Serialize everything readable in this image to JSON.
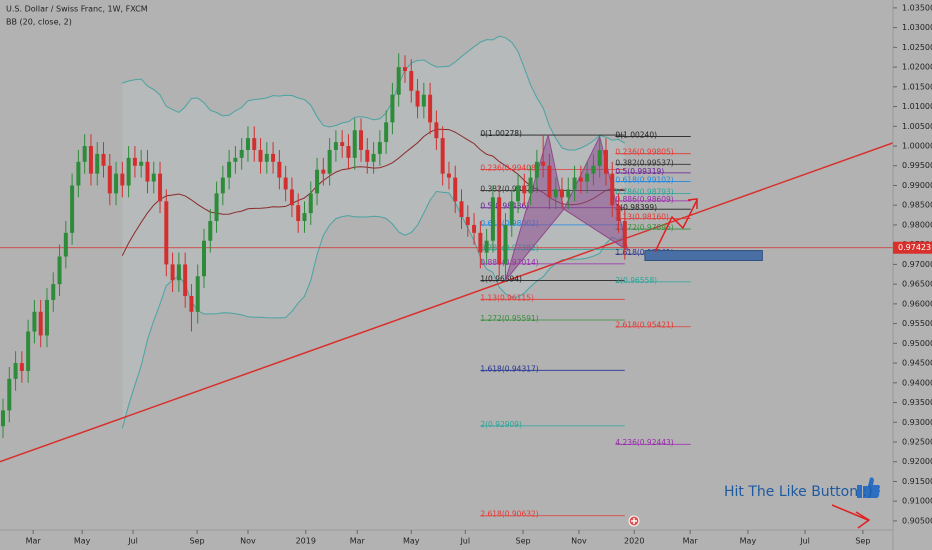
{
  "chart_data": {
    "type": "candlestick",
    "title": "U.S. Dollar / Swiss Franc, 1W, FXCM",
    "indicator": "BB (20, close, 2)",
    "annotation": "Hit The Like Button :)",
    "up_color": "#2e8b3a",
    "down_color": "#d32f2f",
    "x": [
      0,
      1,
      2,
      3,
      4,
      5,
      6,
      7,
      8,
      9,
      10,
      11,
      12,
      13,
      14,
      15,
      16,
      17,
      18,
      19,
      20,
      21,
      22,
      23,
      24,
      25,
      26,
      27,
      28,
      29,
      30,
      31,
      32,
      33,
      34,
      35,
      36,
      37,
      38,
      39,
      40,
      41,
      42,
      43,
      44,
      45,
      46,
      47,
      48,
      49,
      50,
      51,
      52,
      53,
      54,
      55,
      56,
      57,
      58,
      59,
      60,
      61,
      62,
      63,
      64,
      65,
      66,
      67,
      68,
      69,
      70,
      71,
      72,
      73,
      74,
      75,
      76,
      77,
      78,
      79,
      80,
      81,
      82,
      83,
      84,
      85,
      86,
      87,
      88,
      89,
      90,
      91,
      92,
      93,
      94,
      95,
      96,
      97,
      98,
      99
    ],
    "open": [
      0.929,
      0.933,
      0.941,
      0.945,
      0.943,
      0.953,
      0.958,
      0.952,
      0.961,
      0.965,
      0.972,
      0.978,
      0.99,
      0.996,
      1.0,
      0.993,
      0.998,
      0.995,
      0.988,
      0.993,
      0.99,
      0.997,
      0.995,
      0.996,
      0.991,
      0.993,
      0.986,
      0.97,
      0.966,
      0.97,
      0.962,
      0.958,
      0.967,
      0.976,
      0.981,
      0.988,
      0.992,
      0.996,
      0.997,
      0.999,
      1.002,
      0.999,
      0.996,
      0.998,
      0.996,
      0.992,
      0.989,
      0.985,
      0.981,
      0.983,
      0.988,
      0.994,
      0.993,
      0.999,
      1.001,
      1.0,
      0.997,
      1.004,
      0.999,
      0.996,
      0.998,
      1.001,
      1.006,
      1.013,
      1.02,
      1.019,
      1.014,
      1.01,
      1.013,
      1.006,
      1.002,
      0.993,
      0.992,
      0.986,
      0.982,
      0.98,
      0.978,
      0.973,
      0.976,
      0.987,
      0.97,
      0.98,
      0.986,
      0.99,
      0.988,
      0.992,
      0.996,
      0.995,
      0.987,
      0.989,
      0.987,
      0.989,
      0.992,
      0.991,
      0.993,
      0.995,
      0.999,
      0.993,
      0.985,
      0.981
    ],
    "high": [
      0.936,
      0.944,
      0.948,
      0.948,
      0.956,
      0.961,
      0.961,
      0.964,
      0.968,
      0.975,
      0.981,
      0.993,
      0.999,
      1.003,
      1.003,
      1.001,
      1.001,
      0.998,
      0.996,
      0.996,
      1.0,
      1.0,
      0.999,
      0.999,
      0.996,
      0.996,
      0.989,
      0.973,
      0.973,
      0.973,
      0.965,
      0.97,
      0.979,
      0.984,
      0.991,
      0.995,
      0.999,
      1.0,
      1.002,
      1.005,
      1.005,
      1.002,
      1.001,
      1.001,
      0.999,
      0.995,
      0.992,
      0.988,
      0.986,
      0.991,
      0.997,
      0.997,
      1.002,
      1.004,
      1.004,
      1.003,
      1.007,
      1.007,
      1.002,
      1.001,
      1.004,
      1.009,
      1.016,
      1.0235,
      1.023,
      1.022,
      1.017,
      1.016,
      1.016,
      1.009,
      1.005,
      0.996,
      0.995,
      0.989,
      0.985,
      0.983,
      0.981,
      0.979,
      0.99,
      0.99,
      0.983,
      0.989,
      0.993,
      0.993,
      0.995,
      0.999,
      1.0028,
      0.998,
      0.992,
      0.992,
      0.992,
      0.995,
      0.995,
      0.996,
      0.998,
      1.0024,
      1.002,
      0.996,
      0.988,
      0.984
    ],
    "low": [
      0.926,
      0.93,
      0.938,
      0.94,
      0.94,
      0.95,
      0.949,
      0.949,
      0.958,
      0.962,
      0.969,
      0.975,
      0.987,
      0.993,
      0.99,
      0.99,
      0.992,
      0.985,
      0.985,
      0.987,
      0.987,
      0.992,
      0.992,
      0.988,
      0.988,
      0.983,
      0.967,
      0.963,
      0.963,
      0.959,
      0.953,
      0.955,
      0.964,
      0.973,
      0.978,
      0.985,
      0.989,
      0.993,
      0.994,
      0.996,
      0.996,
      0.993,
      0.993,
      0.993,
      0.989,
      0.986,
      0.982,
      0.978,
      0.978,
      0.98,
      0.985,
      0.99,
      0.99,
      0.996,
      0.997,
      0.994,
      0.994,
      0.996,
      0.993,
      0.993,
      0.995,
      0.998,
      1.003,
      1.01,
      1.016,
      1.011,
      1.007,
      1.007,
      1.003,
      0.999,
      0.99,
      0.989,
      0.983,
      0.979,
      0.977,
      0.975,
      0.969,
      0.97,
      0.973,
      0.967,
      0.9659,
      0.977,
      0.983,
      0.985,
      0.985,
      0.989,
      0.992,
      0.984,
      0.984,
      0.984,
      0.984,
      0.986,
      0.988,
      0.988,
      0.99,
      0.992,
      0.99,
      0.982,
      0.978,
      0.9712
    ],
    "close": [
      0.933,
      0.941,
      0.945,
      0.943,
      0.953,
      0.958,
      0.952,
      0.961,
      0.965,
      0.972,
      0.978,
      0.99,
      0.996,
      1.0,
      0.993,
      0.998,
      0.995,
      0.988,
      0.993,
      0.99,
      0.997,
      0.995,
      0.996,
      0.991,
      0.993,
      0.986,
      0.97,
      0.966,
      0.97,
      0.962,
      0.958,
      0.967,
      0.976,
      0.981,
      0.988,
      0.992,
      0.996,
      0.997,
      0.999,
      1.002,
      0.999,
      0.996,
      0.998,
      0.996,
      0.992,
      0.989,
      0.985,
      0.981,
      0.983,
      0.988,
      0.994,
      0.993,
      0.999,
      1.001,
      1.0,
      0.997,
      1.004,
      0.999,
      0.996,
      0.998,
      1.001,
      1.006,
      1.013,
      1.02,
      1.019,
      1.014,
      1.01,
      1.013,
      1.006,
      1.002,
      0.993,
      0.992,
      0.986,
      0.982,
      0.98,
      0.978,
      0.973,
      0.976,
      0.987,
      0.97,
      0.98,
      0.986,
      0.99,
      0.988,
      0.992,
      0.996,
      0.995,
      0.987,
      0.989,
      0.987,
      0.989,
      0.992,
      0.991,
      0.993,
      0.995,
      0.999,
      0.993,
      0.985,
      0.981,
      0.9742
    ],
    "xlim": [
      -0.48,
      141.7
    ],
    "xticks": [
      {
        "value": 4.8,
        "label": "Mar"
      },
      {
        "value": 12.6,
        "label": "May"
      },
      {
        "value": 20.7,
        "label": "Jul"
      },
      {
        "value": 30.9,
        "label": "Sep"
      },
      {
        "value": 39.0,
        "label": "Nov"
      },
      {
        "value": 48.2,
        "label": "2019"
      },
      {
        "value": 56.4,
        "label": "Mar"
      },
      {
        "value": 65.0,
        "label": "May"
      },
      {
        "value": 73.6,
        "label": "Jul"
      },
      {
        "value": 82.8,
        "label": "Sep"
      },
      {
        "value": 91.7,
        "label": "Nov"
      },
      {
        "value": 100.5,
        "label": "2020"
      },
      {
        "value": 109.4,
        "label": "Mar"
      },
      {
        "value": 118.6,
        "label": "May"
      },
      {
        "value": 127.7,
        "label": "Jul"
      },
      {
        "value": 136.9,
        "label": "Sep"
      }
    ],
    "ylim": [
      0.9027,
      1.037
    ],
    "yticks": [
      {
        "value": 1.035,
        "label": "1.03500"
      },
      {
        "value": 1.03,
        "label": "1.03000"
      },
      {
        "value": 1.025,
        "label": "1.02500"
      },
      {
        "value": 1.02,
        "label": "1.02000"
      },
      {
        "value": 1.015,
        "label": "1.01500"
      },
      {
        "value": 1.01,
        "label": "1.01000"
      },
      {
        "value": 1.005,
        "label": "1.00500"
      },
      {
        "value": 1.0,
        "label": "1.00000"
      },
      {
        "value": 0.995,
        "label": "0.99500"
      },
      {
        "value": 0.99,
        "label": "0.99000"
      },
      {
        "value": 0.985,
        "label": "0.98500"
      },
      {
        "value": 0.98,
        "label": "0.98000"
      },
      {
        "value": 0.975,
        "label": "0.97500"
      },
      {
        "value": 0.97,
        "label": "0.97000"
      },
      {
        "value": 0.965,
        "label": "0.96500"
      },
      {
        "value": 0.96,
        "label": "0.96000"
      },
      {
        "value": 0.955,
        "label": "0.95500"
      },
      {
        "value": 0.95,
        "label": "0.95000"
      },
      {
        "value": 0.945,
        "label": "0.94500"
      },
      {
        "value": 0.94,
        "label": "0.94000"
      },
      {
        "value": 0.935,
        "label": "0.93500"
      },
      {
        "value": 0.93,
        "label": "0.93000"
      },
      {
        "value": 0.925,
        "label": "0.92500"
      },
      {
        "value": 0.92,
        "label": "0.92000"
      },
      {
        "value": 0.915,
        "label": "0.91500"
      },
      {
        "value": 0.91,
        "label": "0.91000"
      },
      {
        "value": 0.905,
        "label": "0.90500"
      }
    ],
    "last_price": {
      "value": 0.97423,
      "label": "0.97423"
    },
    "trendline": {
      "x": [
        -0.48,
        141.7
      ],
      "y": [
        0.92,
        1.0008
      ],
      "color": "#d9302c"
    },
    "harmonic_pattern": {
      "x": [
        80,
        86.8,
        89.3,
        95,
        99.5
      ],
      "y": [
        0.96594,
        1.00278,
        0.98399,
        1.0024,
        0.9735
      ],
      "color": "#8e4a8e"
    },
    "target_zone": {
      "x": [
        102.2,
        120.9
      ],
      "y": [
        0.9735,
        0.971
      ],
      "color": "#4a6fa5"
    },
    "fib_groups": [
      {
        "levels": [
          {
            "label": "0(1.00278)",
            "value": 1.00278,
            "color": "#222222"
          },
          {
            "label": "0.236(0.99408)",
            "value": 0.99408,
            "color": "#e53935"
          },
          {
            "label": "0.382(0.98871)",
            "value": 0.98871,
            "color": "#333333"
          },
          {
            "label": "0.5(0.98436)",
            "value": 0.98436,
            "color": "#6a1b9a"
          },
          {
            "label": "0.618(0.98002)",
            "value": 0.98002,
            "color": "#1e88e5"
          },
          {
            "label": "0.786(0.97382)",
            "value": 0.97382,
            "color": "#26a69a"
          },
          {
            "label": "0.886(0.97014)",
            "value": 0.97014,
            "color": "#9c27b0"
          },
          {
            "label": "1(0.96594)",
            "value": 0.96594,
            "color": "#222222"
          },
          {
            "label": "1.13(0.96115)",
            "value": 0.96115,
            "color": "#e53935"
          },
          {
            "label": "1.272(0.95591)",
            "value": 0.95591,
            "color": "#388e3c"
          },
          {
            "label": "1.618(0.94317)",
            "value": 0.94317,
            "color": "#283593"
          },
          {
            "label": "2(0.92909)",
            "value": 0.92909,
            "color": "#26a69a"
          },
          {
            "label": "2.618(0.90632)",
            "value": 0.90632,
            "color": "#e53935"
          }
        ]
      },
      {
        "levels": [
          {
            "label": "0(1.00240)",
            "value": 1.0024,
            "color": "#222222"
          },
          {
            "label": "0.236(0.99805)",
            "value": 0.99805,
            "color": "#e53935"
          },
          {
            "label": "0.382(0.99537)",
            "value": 0.99537,
            "color": "#333333"
          },
          {
            "label": "0.5(0.99319)",
            "value": 0.99319,
            "color": "#6a1b9a"
          },
          {
            "label": "0.618(0.99102)",
            "value": 0.99102,
            "color": "#1e88e5"
          },
          {
            "label": "0.786(0.98793)",
            "value": 0.98793,
            "color": "#26a69a"
          },
          {
            "label": "0.886(0.98609)",
            "value": 0.98609,
            "color": "#9c27b0"
          },
          {
            "label": "1(0.98399)",
            "value": 0.98399,
            "color": "#222222"
          },
          {
            "label": "1.13(0.98160)",
            "value": 0.9816,
            "color": "#e53935"
          },
          {
            "label": "1.272(0.97896)",
            "value": 0.97896,
            "color": "#388e3c"
          },
          {
            "label": "1.618(0.97261)",
            "value": 0.97261,
            "color": "#283593"
          },
          {
            "label": "2(0.96558)",
            "value": 0.96558,
            "color": "#26a69a"
          },
          {
            "label": "2.618(0.95421)",
            "value": 0.95421,
            "color": "#e53935"
          },
          {
            "label": "4.236(0.92443)",
            "value": 0.92443,
            "color": "#9c27b0"
          }
        ]
      }
    ]
  }
}
